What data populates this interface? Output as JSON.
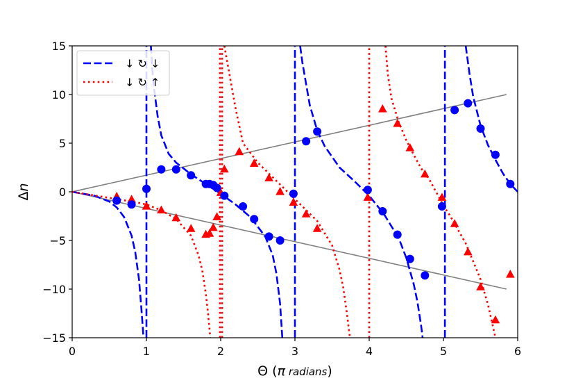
{
  "chart_data": {
    "type": "scatter",
    "xlabel": {
      "main": "Θ (",
      "sym": "π",
      "unit": " radians",
      "close": ")"
    },
    "ylabel": {
      "main": "Δ",
      "sym": "n"
    },
    "xlim": [
      0,
      6
    ],
    "ylim": [
      -15,
      15
    ],
    "xticks": [
      "0",
      "1",
      "2",
      "3",
      "4",
      "5",
      "6"
    ],
    "xtick_values": [
      0,
      1,
      2,
      3,
      4,
      5,
      6
    ],
    "yticks": [
      "−15",
      "−10",
      "−5",
      "0",
      "5",
      "10",
      "15"
    ],
    "ytick_values": [
      -15,
      -10,
      -5,
      0,
      5,
      10,
      15
    ],
    "grid": false,
    "legend_position": "top-left",
    "colors": {
      "blue": "#0000ff",
      "red": "#ff0000",
      "gray": "#808080"
    },
    "legend": [
      {
        "label": "↓ ↻ ↓",
        "color": "#0000ff",
        "style": "dashed"
      },
      {
        "label": "↓ ↻ ↑",
        "color": "#ff0000",
        "style": "dotted"
      }
    ],
    "guide_lines": [
      {
        "x": [
          0,
          5.85
        ],
        "y": [
          0,
          10
        ]
      },
      {
        "x": [
          0,
          5.85
        ],
        "y": [
          0,
          -10
        ]
      }
    ],
    "curve_blue_segments": [
      {
        "x": [
          0,
          0.3,
          0.5,
          0.6,
          0.7,
          0.8,
          0.85,
          0.9,
          0.93,
          0.95,
          0.96
        ],
        "y": [
          0,
          -0.4,
          -1.0,
          -1.6,
          -2.6,
          -4.5,
          -6.2,
          -9.0,
          -11.8,
          -13.8,
          -15
        ]
      },
      {
        "x": [
          1.0,
          1.0
        ],
        "y": [
          -15,
          15
        ]
      },
      {
        "x": [
          1.06,
          1.08,
          1.1,
          1.15,
          1.2,
          1.3,
          1.4,
          1.5,
          1.6,
          1.7,
          1.8,
          1.9,
          2.0,
          2.2,
          2.4,
          2.6,
          2.7,
          2.75,
          2.8,
          2.83
        ],
        "y": [
          15,
          12.5,
          10.8,
          7.8,
          5.8,
          3.9,
          3.0,
          2.4,
          1.8,
          1.3,
          0.8,
          0.3,
          -0.2,
          -1.3,
          -2.6,
          -4.6,
          -6.5,
          -8.4,
          -11.5,
          -15
        ]
      },
      {
        "x": [
          3.0,
          3.0
        ],
        "y": [
          -15,
          15
        ]
      },
      {
        "x": [
          3.07,
          3.1,
          3.2,
          3.3,
          3.4,
          3.6,
          3.8,
          4.0,
          4.2,
          4.4,
          4.5,
          4.6,
          4.65,
          4.7,
          4.72
        ],
        "y": [
          15,
          13.3,
          8.9,
          6.3,
          4.7,
          2.5,
          1.1,
          -0.4,
          -2.3,
          -4.8,
          -6.8,
          -9.5,
          -11.3,
          -13.8,
          -15
        ]
      },
      {
        "x": [
          5.02,
          5.02
        ],
        "y": [
          -15,
          15
        ]
      },
      {
        "x": [
          5.3,
          5.35,
          5.4,
          5.5,
          5.6,
          5.7,
          5.8,
          5.9,
          6.0
        ],
        "y": [
          15,
          12.2,
          9.8,
          6.8,
          4.8,
          3.3,
          1.9,
          0.8,
          0.0
        ]
      }
    ],
    "curve_red_segments": [
      {
        "x": [
          0,
          0.4,
          0.8,
          1.0,
          1.2,
          1.4,
          1.6,
          1.7,
          1.75,
          1.8,
          1.83,
          1.86
        ],
        "y": [
          0,
          -0.5,
          -1.0,
          -1.3,
          -1.9,
          -2.8,
          -4.5,
          -6.5,
          -8.0,
          -10.5,
          -12.5,
          -15
        ]
      },
      {
        "x": [
          1.99,
          1.99
        ],
        "y": [
          -15,
          15
        ]
      },
      {
        "x": [
          2.02,
          2.02
        ],
        "y": [
          -15,
          15
        ]
      },
      {
        "x": [
          2.05,
          2.2,
          2.3,
          2.5,
          2.7,
          2.9,
          3.1,
          3.3,
          3.5,
          3.6,
          3.65,
          3.7,
          3.74
        ],
        "y": [
          15,
          8.6,
          5.0,
          3.0,
          1.5,
          0.0,
          -1.5,
          -3.0,
          -5.5,
          -8.0,
          -9.8,
          -12.5,
          -15
        ]
      },
      {
        "x": [
          4.0,
          4.0
        ],
        "y": [
          -15,
          15
        ]
      },
      {
        "x": [
          4.22,
          4.25,
          4.3,
          4.4,
          4.5,
          4.6,
          4.7,
          4.8,
          5.0,
          5.1,
          5.3,
          5.5,
          5.6,
          5.65,
          5.7
        ],
        "y": [
          15,
          12.1,
          9.6,
          7.1,
          5.3,
          3.8,
          2.4,
          1.4,
          -1.4,
          -2.6,
          -5.3,
          -9.0,
          -11.6,
          -13.3,
          -15
        ]
      }
    ],
    "points_blue": {
      "x": [
        0.6,
        0.8,
        1.0,
        1.2,
        1.4,
        1.6,
        1.8,
        1.85,
        1.9,
        1.95,
        2.05,
        2.3,
        2.45,
        2.65,
        2.8,
        2.98,
        3.15,
        3.3,
        3.98,
        4.18,
        4.38,
        4.55,
        4.75,
        4.98,
        5.15,
        5.33,
        5.5,
        5.7,
        5.9
      ],
      "y": [
        -0.9,
        -1.3,
        0.3,
        2.3,
        2.3,
        1.7,
        0.8,
        0.8,
        0.7,
        0.4,
        -0.4,
        -1.5,
        -2.8,
        -4.6,
        -5.0,
        -0.2,
        5.2,
        6.2,
        0.2,
        -2.0,
        -4.4,
        -6.9,
        -8.6,
        -1.5,
        8.4,
        9.1,
        6.5,
        3.8,
        0.8
      ]
    },
    "points_red": {
      "x": [
        0.6,
        0.8,
        1.0,
        1.2,
        1.4,
        1.6,
        1.8,
        1.85,
        1.9,
        1.95,
        2.0,
        2.05,
        2.25,
        2.45,
        2.65,
        2.8,
        2.98,
        3.15,
        3.3,
        3.98,
        4.18,
        4.38,
        4.55,
        4.75,
        4.98,
        5.15,
        5.33,
        5.5,
        5.7,
        5.9
      ],
      "y": [
        -0.5,
        -0.8,
        -1.5,
        -1.9,
        -2.7,
        -3.8,
        -4.4,
        -4.3,
        -3.7,
        -2.6,
        -0.1,
        2.3,
        4.1,
        2.9,
        1.4,
        0.0,
        -1.1,
        -2.3,
        -3.8,
        -0.6,
        8.5,
        7.0,
        4.5,
        1.8,
        -0.6,
        -3.3,
        -6.2,
        -9.8,
        -13.2,
        -8.5
      ]
    }
  }
}
